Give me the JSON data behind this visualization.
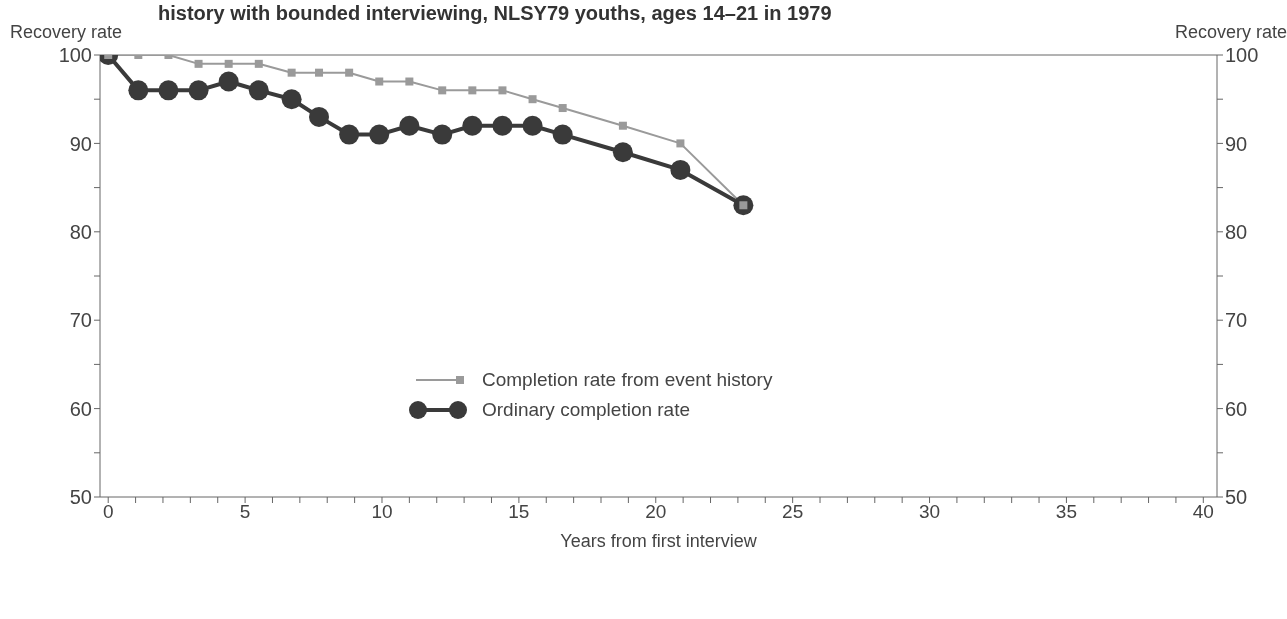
{
  "chart_data": {
    "type": "line",
    "title": "history with bounded interviewing, NLSY79 youths, ages 14–21 in 1979",
    "xlabel": "Years from first interview",
    "ylabel": "Recovery rate",
    "y2label": "Recovery rate",
    "series": [
      {
        "name": "Completion rate from event history",
        "color": "#9a9a9a",
        "marker": "square",
        "x": [
          0,
          1.1,
          2.2,
          3.3,
          4.4,
          5.5,
          6.7,
          7.7,
          8.8,
          9.9,
          11.0,
          12.2,
          13.3,
          14.4,
          15.5,
          16.6,
          18.8,
          20.9,
          23.2
        ],
        "values": [
          100,
          100,
          100,
          99,
          99,
          99,
          98,
          98,
          98,
          97,
          97,
          96,
          96,
          96,
          95,
          94,
          92,
          90,
          83
        ]
      },
      {
        "name": "Ordinary completion rate",
        "color": "#3a3a3a",
        "marker": "circle",
        "x": [
          0,
          1.1,
          2.2,
          3.3,
          4.4,
          5.5,
          6.7,
          7.7,
          8.8,
          9.9,
          11.0,
          12.2,
          13.3,
          14.4,
          15.5,
          16.6,
          18.8,
          20.9,
          23.2
        ],
        "values": [
          100,
          96,
          96,
          96,
          97,
          96,
          95,
          93,
          91,
          91,
          92,
          91,
          92,
          92,
          92,
          91,
          89,
          87,
          83
        ]
      }
    ],
    "xlim": [
      -0.3,
      40.5
    ],
    "xticks": [
      0,
      {
        "value": 1,
        "label": null
      },
      {
        "value": 2,
        "label": null
      },
      {
        "value": 3,
        "label": null
      },
      {
        "value": 4,
        "label": null
      },
      5,
      {
        "value": 6,
        "label": null
      },
      {
        "value": 7,
        "label": null
      },
      {
        "value": 8,
        "label": null
      },
      {
        "value": 9,
        "label": null
      },
      10,
      {
        "value": 11,
        "label": null
      },
      {
        "value": 12,
        "label": null
      },
      {
        "value": 13,
        "label": null
      },
      {
        "value": 14,
        "label": null
      },
      15,
      {
        "value": 16,
        "label": null
      },
      {
        "value": 17,
        "label": null
      },
      {
        "value": 18,
        "label": null
      },
      {
        "value": 19,
        "label": null
      },
      20,
      {
        "value": 21,
        "label": null
      },
      {
        "value": 22,
        "label": null
      },
      {
        "value": 23,
        "label": null
      },
      {
        "value": 24,
        "label": null
      },
      25,
      {
        "value": 26,
        "label": null
      },
      {
        "value": 27,
        "label": null
      },
      {
        "value": 28,
        "label": null
      },
      {
        "value": 29,
        "label": null
      },
      30,
      {
        "value": 31,
        "label": null
      },
      {
        "value": 32,
        "label": null
      },
      {
        "value": 33,
        "label": null
      },
      {
        "value": 34,
        "label": null
      },
      35,
      {
        "value": 36,
        "label": null
      },
      {
        "value": 37,
        "label": null
      },
      {
        "value": 38,
        "label": null
      },
      {
        "value": 39,
        "label": null
      },
      40
    ],
    "ylim": [
      50,
      100
    ],
    "yticks": [
      50,
      {
        "value": 55,
        "label": null
      },
      60,
      {
        "value": 65,
        "label": null
      },
      70,
      {
        "value": 75,
        "label": null
      },
      80,
      {
        "value": 85,
        "label": null
      },
      90,
      {
        "value": 95,
        "label": null
      },
      100
    ],
    "y2lim": [
      50,
      100
    ],
    "y2ticks": [
      50,
      {
        "value": 55,
        "label": null
      },
      60,
      {
        "value": 65,
        "label": null
      },
      70,
      {
        "value": 75,
        "label": null
      },
      80,
      {
        "value": 85,
        "label": null
      },
      90,
      {
        "value": 95,
        "label": null
      },
      100
    ],
    "grid": false,
    "legend": "center"
  }
}
